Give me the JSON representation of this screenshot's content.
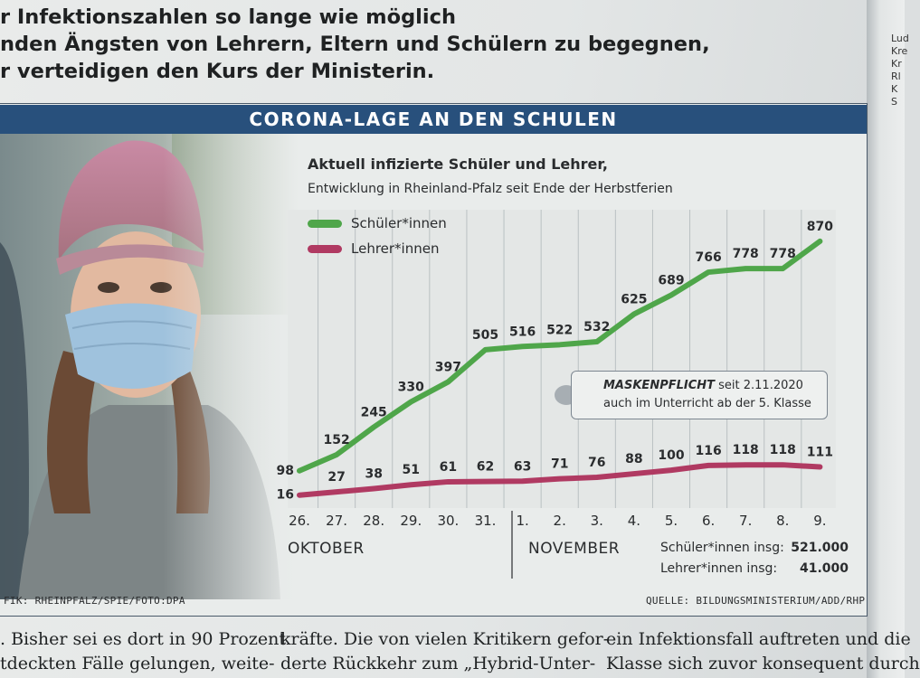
{
  "headline": {
    "line1": "r Infektionszahlen so lange wie möglich",
    "line2": "nden Ängsten von Lehrern, Eltern und Schülern zu begegnen,",
    "line3": "r verteidigen den Kurs der Ministerin."
  },
  "side_column": {
    "lines": [
      "Lud",
      "Kre",
      "Kr",
      "Rl",
      "K",
      "S"
    ]
  },
  "banner": {
    "title": "CORONA-LAGE AN DEN SCHULEN"
  },
  "chart_data": {
    "type": "line",
    "title": "Aktuell infizierte Schüler und Lehrer,",
    "subtitle": "Entwicklung in Rheinland-Pfalz seit Ende der Herbstferien",
    "categories": [
      "26.",
      "27.",
      "28.",
      "29.",
      "30.",
      "31.",
      "1.",
      "2.",
      "3.",
      "4.",
      "5.",
      "6.",
      "7.",
      "8.",
      "9."
    ],
    "months": {
      "october": "OKTOBER",
      "november": "NOVEMBER"
    },
    "series": [
      {
        "name": "Schüler*innen",
        "color": "#4fa64a",
        "values": [
          98,
          152,
          245,
          330,
          397,
          505,
          516,
          522,
          532,
          625,
          689,
          766,
          778,
          778,
          870
        ]
      },
      {
        "name": "Lehrer*innen",
        "color": "#b03a62",
        "values": [
          16,
          27,
          38,
          51,
          61,
          62,
          63,
          71,
          76,
          88,
          100,
          116,
          118,
          118,
          111
        ]
      }
    ],
    "ylim": [
      0,
      900
    ],
    "grid": "vertical",
    "legend": "top-left",
    "annotation": {
      "bold": "MASKENPFLICHT",
      "text1": " seit 2.11.2020",
      "text2": "auch im Unterricht ab der 5. Klasse"
    },
    "totals": [
      {
        "label": "Schüler*innen insg:",
        "value": "521.000"
      },
      {
        "label": "Lehrer*innen insg:",
        "value": "41.000"
      }
    ],
    "source": "QUELLE: BILDUNGSMINISTERIUM/ADD/RHP",
    "credit": "FIK: RHEINPFALZ/SPIE/FOTO:DPA"
  },
  "article": {
    "col1": [
      ". Bisher sei es dort in 90 Prozent",
      "tdeckten Fälle gelungen, weite-"
    ],
    "col2": [
      "kräfte. Die von vielen Kritikern gefor-",
      "derte Rückkehr zum „Hybrid-Unter-"
    ],
    "col3": [
      "ein Infektionsfall auftreten und die",
      "Klasse sich zuvor konsequent durch"
    ]
  }
}
